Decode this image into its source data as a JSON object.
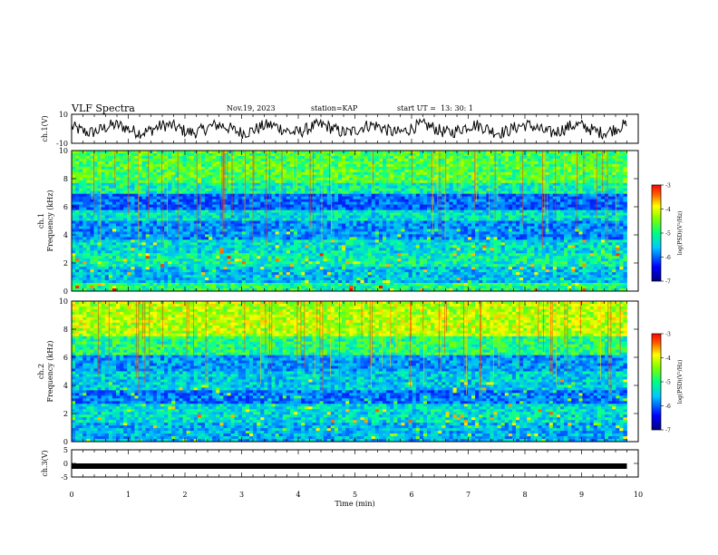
{
  "header": {
    "title": "VLF Spectra",
    "date": "Nov.19, 2023",
    "station": "station=KAP",
    "start": "start UT =  13: 30: 1"
  },
  "chart_data": [
    {
      "type": "line",
      "panel": "ch1-waveform",
      "ylabel": "ch.1(V)",
      "ylim": [
        -10,
        10
      ],
      "yticks": [
        "10",
        "-10"
      ],
      "xlim": [
        0,
        10
      ],
      "series": [
        {
          "note": "dense noisy waveform roughly between -5 and 5 V over 0–9.8 min"
        }
      ]
    },
    {
      "type": "heatmap",
      "panel": "ch1-spectrogram",
      "ylabel": "ch.1 Frequency (kHz)",
      "ylim": [
        0,
        10
      ],
      "yticks": [
        "0",
        "2",
        "4",
        "6",
        "8",
        "10"
      ],
      "xlim": [
        0,
        10
      ],
      "data_extent_min": 9.8,
      "colorbar": {
        "label": "log(PSD)(V²/Hz)",
        "range": [
          -7,
          -3
        ],
        "ticks": [
          "-3",
          "-4",
          "-5",
          "-6",
          "-7"
        ]
      }
    },
    {
      "type": "heatmap",
      "panel": "ch2-spectrogram",
      "ylabel": "ch.2 Frequency (kHz)",
      "ylim": [
        0,
        10
      ],
      "yticks": [
        "0",
        "2",
        "4",
        "6",
        "8",
        "10"
      ],
      "xlim": [
        0,
        10
      ],
      "data_extent_min": 9.8,
      "colorbar": {
        "label": "log(PSD)(V²/Hz)",
        "range": [
          -7,
          -3
        ],
        "ticks": [
          "-3",
          "-4",
          "-5",
          "-6",
          "-7"
        ]
      }
    },
    {
      "type": "line",
      "panel": "ch3-waveform",
      "ylabel": "ch.3(V)",
      "ylim": [
        -5,
        5
      ],
      "yticks": [
        "5",
        "0",
        "-5"
      ],
      "xlim": [
        0,
        10
      ],
      "xlabel": "Time (min)",
      "xticks": [
        "0",
        "1",
        "2",
        "3",
        "4",
        "5",
        "6",
        "7",
        "8",
        "9",
        "10"
      ],
      "series": [
        {
          "note": "thick flat trace near -1 V from 0 to 9.8 min"
        }
      ]
    }
  ]
}
